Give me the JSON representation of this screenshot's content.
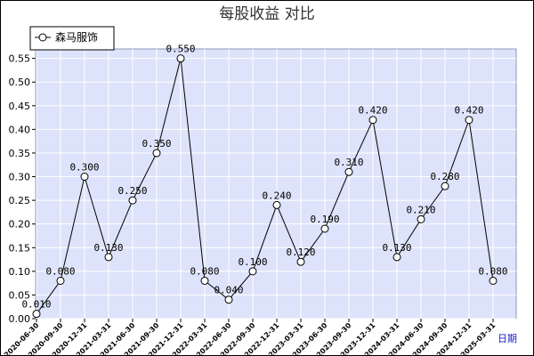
{
  "chart_data": {
    "type": "line",
    "title": "每股收益  对比",
    "xlabel": "日期",
    "ylabel": "",
    "ylim": [
      0,
      0.57
    ],
    "yticks": [
      "0.00",
      "0.05",
      "0.10",
      "0.15",
      "0.20",
      "0.25",
      "0.30",
      "0.35",
      "0.40",
      "0.45",
      "0.50",
      "0.55"
    ],
    "yticks_values": [
      0,
      0.05,
      0.1,
      0.15,
      0.2,
      0.25,
      0.3,
      0.35,
      0.4,
      0.45,
      0.5,
      0.55
    ],
    "grid": true,
    "legend_position": "top-left",
    "colors": {
      "plot_bg": "#dde3fa",
      "grid": "#ffffff",
      "line": "#000000"
    },
    "categories": [
      "2020-06-30",
      "2020-09-30",
      "2020-12-31",
      "2021-03-31",
      "2021-06-30",
      "2021-09-30",
      "2021-12-31",
      "2022-03-31",
      "2022-06-30",
      "2022-09-30",
      "2022-12-31",
      "2023-03-31",
      "2023-06-30",
      "2023-09-30",
      "2023-12-31",
      "2024-03-31",
      "2024-06-30",
      "2024-09-30",
      "2024-12-31",
      "2025-03-31"
    ],
    "series": [
      {
        "name": "森马服饰",
        "values": [
          0.01,
          0.08,
          0.3,
          0.13,
          0.25,
          0.35,
          0.55,
          0.08,
          0.04,
          0.1,
          0.24,
          0.12,
          0.19,
          0.31,
          0.42,
          0.13,
          0.21,
          0.28,
          0.42,
          0.08
        ],
        "labels": [
          "0.010",
          "0.080",
          "0.300",
          "0.130",
          "0.250",
          "0.350",
          "0.550",
          "0.080",
          "0.040",
          "0.100",
          "0.240",
          "0.120",
          "0.190",
          "0.310",
          "0.420",
          "0.130",
          "0.210",
          "0.280",
          "0.420",
          "0.080"
        ]
      }
    ]
  }
}
